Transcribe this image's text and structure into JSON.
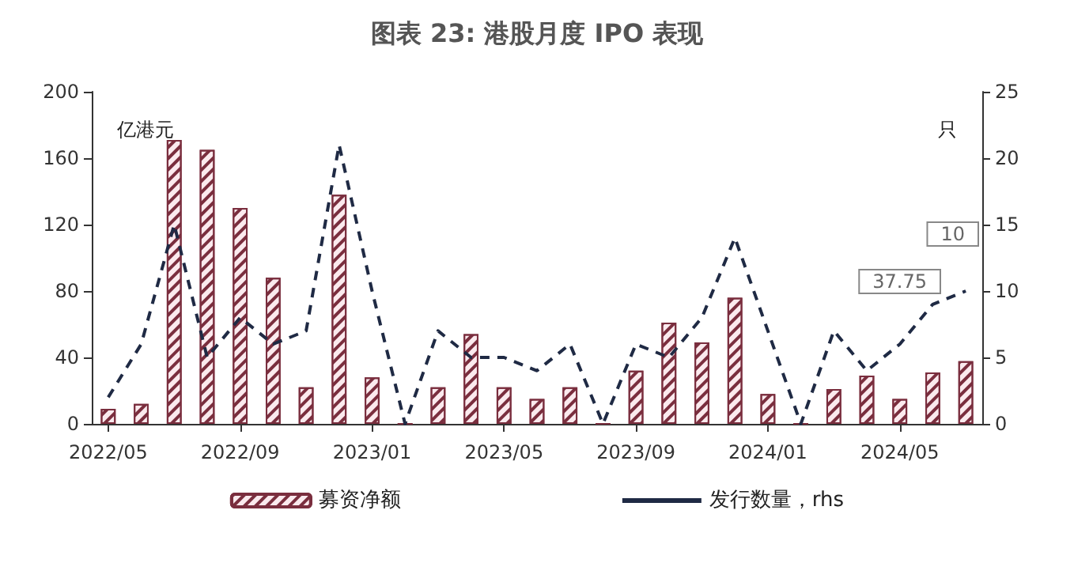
{
  "chart_data": {
    "type": "bar",
    "title": "图表 23: 港股月度 IPO 表现",
    "ylabel": "亿港元",
    "y2label": "只",
    "categories": [
      "2022/05",
      null,
      null,
      null,
      "2022/09",
      null,
      null,
      null,
      "2023/01",
      null,
      null,
      null,
      "2023/05",
      null,
      null,
      null,
      "2023/09",
      null,
      null,
      null,
      "2024/01",
      null,
      null,
      null,
      "2024/05",
      null,
      null
    ],
    "series": [
      {
        "name": "募资净额",
        "color": "#7a2e3e",
        "values": [
          9,
          12,
          171,
          165,
          130,
          88,
          22,
          138,
          28,
          0,
          22,
          54,
          22,
          15,
          22,
          0,
          32,
          61,
          49,
          76,
          18,
          0,
          21,
          29,
          15,
          31,
          37.75
        ]
      },
      {
        "name": "发行数量，rhs",
        "type": "line",
        "axis": "y2",
        "color": "#1f2a44",
        "line_style": "dashed",
        "marker": "none",
        "values": [
          2,
          6,
          15,
          5,
          8,
          6,
          7,
          21,
          10,
          0,
          7,
          5,
          5,
          4,
          6,
          0,
          6,
          5,
          8,
          14,
          7,
          0,
          7,
          4,
          6,
          9,
          10
        ]
      }
    ],
    "annotations": [
      "37.75",
      "10"
    ],
    "ylim": [
      0,
      200
    ],
    "yticks": [
      0,
      40,
      80,
      120,
      160,
      200
    ],
    "y2lim": [
      0,
      25
    ],
    "y2ticks": [
      0,
      5,
      10,
      15,
      20,
      25
    ],
    "grid": false,
    "legend": "bottom"
  }
}
